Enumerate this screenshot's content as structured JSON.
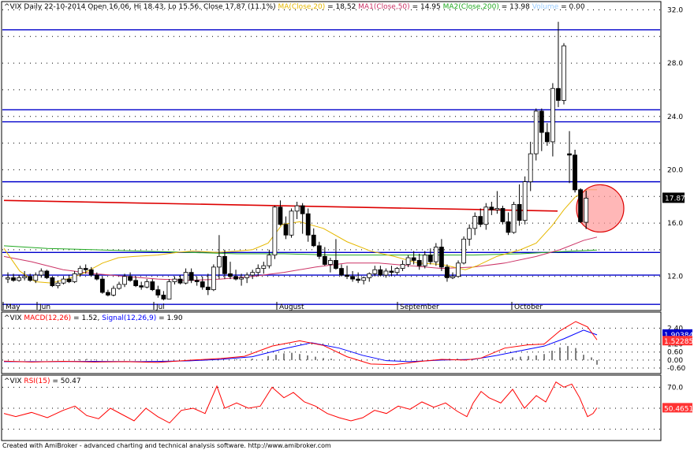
{
  "chart_data": {
    "type": "candlestick",
    "symbol": "^VIX",
    "header": {
      "symbol": "^VIX",
      "interval": "Daily",
      "date": "22-10-2014",
      "ohlc_text": "Open 16.06, Hi 18.43, Lo 15.56, Close 17.87 (11.1%)",
      "ma20_label": "MA(Close,20)",
      "ma20_value": "= 18.52",
      "ma50_label": "MA1(Close,50)",
      "ma50_value": "= 14.95",
      "ma200_label": "MA2(Close,200)",
      "ma200_value": "= 13.98",
      "volume_label": "Volume",
      "volume_value": "= 0.00"
    },
    "y_axis_ticks": [
      "32.0",
      "28.0",
      "24.0",
      "20.0",
      "16.0",
      "12.0"
    ],
    "last_price_label": "17.87",
    "x_axis_labels": [
      "May",
      "Jun",
      "Jul",
      "August",
      "September",
      "October"
    ],
    "ylim": [
      9.5,
      32.5
    ],
    "candles": [
      [
        11.8,
        12.3,
        11.5,
        11.9
      ],
      [
        11.9,
        12.2,
        11.6,
        11.7
      ],
      [
        11.7,
        12.1,
        11.6,
        11.9
      ],
      [
        11.9,
        12.4,
        11.7,
        12.0
      ],
      [
        12.0,
        12.2,
        11.6,
        11.7
      ],
      [
        11.7,
        12.3,
        11.5,
        12.1
      ],
      [
        12.1,
        12.6,
        11.9,
        12.4
      ],
      [
        12.4,
        12.5,
        11.8,
        11.9
      ],
      [
        11.9,
        12.0,
        11.2,
        11.3
      ],
      [
        11.3,
        11.7,
        11.1,
        11.5
      ],
      [
        11.5,
        12.0,
        11.4,
        11.8
      ],
      [
        11.8,
        12.1,
        11.5,
        11.6
      ],
      [
        11.6,
        12.4,
        11.5,
        12.2
      ],
      [
        12.2,
        12.8,
        12.0,
        12.6
      ],
      [
        12.6,
        12.9,
        12.2,
        12.5
      ],
      [
        12.5,
        12.7,
        12.0,
        12.1
      ],
      [
        12.1,
        12.3,
        11.7,
        11.8
      ],
      [
        11.8,
        12.0,
        10.7,
        10.8
      ],
      [
        10.8,
        11.0,
        10.5,
        10.6
      ],
      [
        10.6,
        11.3,
        10.5,
        11.1
      ],
      [
        11.1,
        11.6,
        11.0,
        11.4
      ],
      [
        11.4,
        12.2,
        11.2,
        12.0
      ],
      [
        12.0,
        12.3,
        11.6,
        11.7
      ],
      [
        11.7,
        12.0,
        11.2,
        11.3
      ],
      [
        11.3,
        11.6,
        11.0,
        11.2
      ],
      [
        11.2,
        11.8,
        11.1,
        11.6
      ],
      [
        11.6,
        11.8,
        10.9,
        11.0
      ],
      [
        11.0,
        11.3,
        10.4,
        10.6
      ],
      [
        10.6,
        10.9,
        10.2,
        10.3
      ],
      [
        10.3,
        11.8,
        10.3,
        11.6
      ],
      [
        11.6,
        12.0,
        11.4,
        11.8
      ],
      [
        11.8,
        12.1,
        11.4,
        11.5
      ],
      [
        11.5,
        12.6,
        11.4,
        12.3
      ],
      [
        12.3,
        12.6,
        11.5,
        11.7
      ],
      [
        11.7,
        12.0,
        11.3,
        11.6
      ],
      [
        11.6,
        12.0,
        11.0,
        11.2
      ],
      [
        11.2,
        12.2,
        10.6,
        11.0
      ],
      [
        11.0,
        12.9,
        10.9,
        12.7
      ],
      [
        12.7,
        15.1,
        11.8,
        13.5
      ],
      [
        13.5,
        14.0,
        11.8,
        12.2
      ],
      [
        12.2,
        13.1,
        11.8,
        12.0
      ],
      [
        12.0,
        12.5,
        11.7,
        11.8
      ],
      [
        11.8,
        12.2,
        11.3,
        11.9
      ],
      [
        11.9,
        12.3,
        11.5,
        12.1
      ],
      [
        12.1,
        12.5,
        11.8,
        12.3
      ],
      [
        12.3,
        12.9,
        12.0,
        12.6
      ],
      [
        12.6,
        13.1,
        12.2,
        12.8
      ],
      [
        12.8,
        14.0,
        12.6,
        13.6
      ],
      [
        13.6,
        17.3,
        13.3,
        17.2
      ],
      [
        17.2,
        17.7,
        15.8,
        15.9
      ],
      [
        15.9,
        16.5,
        14.8,
        15.1
      ],
      [
        15.1,
        17.1,
        14.9,
        16.9
      ],
      [
        16.9,
        17.6,
        16.3,
        17.3
      ],
      [
        17.3,
        17.5,
        15.2,
        16.7
      ],
      [
        16.7,
        17.1,
        14.6,
        15.1
      ],
      [
        15.1,
        15.6,
        14.2,
        14.3
      ],
      [
        14.3,
        14.6,
        13.3,
        13.5
      ],
      [
        13.5,
        14.2,
        12.8,
        12.9
      ],
      [
        12.9,
        13.4,
        12.3,
        13.2
      ],
      [
        13.2,
        14.8,
        12.5,
        12.6
      ],
      [
        12.6,
        12.9,
        12.0,
        12.1
      ],
      [
        12.1,
        12.8,
        11.8,
        12.0
      ],
      [
        12.0,
        12.4,
        11.6,
        11.8
      ],
      [
        11.8,
        12.3,
        11.5,
        11.7
      ],
      [
        11.7,
        12.0,
        11.4,
        11.9
      ],
      [
        11.9,
        12.3,
        11.6,
        12.2
      ],
      [
        12.2,
        12.8,
        12.0,
        12.5
      ],
      [
        12.5,
        12.8,
        12.0,
        12.1
      ],
      [
        12.1,
        12.6,
        11.9,
        12.4
      ],
      [
        12.4,
        12.8,
        12.0,
        12.3
      ],
      [
        12.3,
        12.7,
        12.1,
        12.6
      ],
      [
        12.6,
        13.2,
        12.4,
        12.9
      ],
      [
        12.9,
        13.6,
        12.7,
        13.4
      ],
      [
        13.4,
        13.9,
        12.9,
        13.2
      ],
      [
        13.2,
        13.7,
        12.5,
        12.8
      ],
      [
        12.8,
        13.9,
        12.6,
        13.6
      ],
      [
        13.6,
        14.1,
        12.9,
        13.1
      ],
      [
        13.1,
        14.5,
        12.8,
        14.2
      ],
      [
        14.2,
        14.8,
        12.4,
        12.7
      ],
      [
        12.7,
        12.9,
        11.6,
        11.9
      ],
      [
        11.9,
        12.3,
        11.8,
        12.0
      ],
      [
        12.0,
        13.2,
        11.9,
        13.0
      ],
      [
        13.0,
        15.0,
        12.9,
        14.8
      ],
      [
        14.8,
        15.9,
        14.3,
        15.6
      ],
      [
        15.6,
        16.8,
        15.1,
        16.5
      ],
      [
        16.5,
        17.1,
        15.7,
        15.9
      ],
      [
        15.9,
        17.5,
        15.5,
        17.2
      ],
      [
        17.2,
        17.6,
        16.6,
        17.0
      ],
      [
        17.0,
        18.4,
        16.7,
        17.1
      ],
      [
        17.1,
        17.3,
        15.9,
        16.1
      ],
      [
        16.1,
        16.8,
        15.1,
        15.3
      ],
      [
        15.3,
        17.6,
        15.2,
        17.4
      ],
      [
        17.4,
        18.9,
        15.8,
        16.2
      ],
      [
        16.2,
        19.5,
        15.9,
        19.1
      ],
      [
        19.1,
        22.1,
        18.4,
        21.2
      ],
      [
        21.2,
        24.6,
        20.7,
        24.4
      ],
      [
        24.4,
        24.6,
        21.4,
        22.8
      ],
      [
        22.8,
        23.5,
        21.8,
        22.1
      ],
      [
        22.1,
        26.5,
        21.0,
        26.1
      ],
      [
        26.1,
        31.1,
        24.7,
        25.2
      ],
      [
        25.2,
        29.5,
        24.9,
        29.3
      ],
      [
        21.2,
        22.9,
        19.0,
        21.1
      ],
      [
        21.1,
        21.5,
        18.3,
        18.5
      ],
      [
        18.5,
        18.6,
        16.0,
        16.1
      ],
      [
        16.06,
        18.43,
        15.56,
        17.87
      ]
    ],
    "ma20_line": [
      [
        5,
        14.1
      ],
      [
        25,
        12.4
      ],
      [
        45,
        11.6
      ],
      [
        65,
        11.5
      ],
      [
        85,
        11.8
      ],
      [
        105,
        12.2
      ],
      [
        130,
        13.0
      ],
      [
        150,
        13.4
      ],
      [
        170,
        13.5
      ],
      [
        200,
        13.6
      ],
      [
        225,
        13.8
      ],
      [
        244,
        13.9
      ],
      [
        275,
        13.8
      ],
      [
        300,
        13.9
      ],
      [
        320,
        14.0
      ],
      [
        340,
        14.5
      ],
      [
        358,
        15.9
      ],
      [
        380,
        16.1
      ],
      [
        410,
        15.6
      ],
      [
        440,
        14.6
      ],
      [
        470,
        13.9
      ],
      [
        500,
        13.5
      ],
      [
        530,
        13.0
      ],
      [
        560,
        12.9
      ],
      [
        590,
        12.5
      ],
      [
        605,
        12.8
      ],
      [
        630,
        13.5
      ],
      [
        660,
        14.0
      ],
      [
        680,
        14.5
      ],
      [
        700,
        15.8
      ],
      [
        715,
        17.0
      ],
      [
        730,
        18.0
      ],
      [
        745,
        18.5
      ],
      [
        757,
        18.5
      ]
    ],
    "ma50_line": [
      [
        5,
        13.5
      ],
      [
        40,
        13.1
      ],
      [
        80,
        12.5
      ],
      [
        120,
        12.2
      ],
      [
        160,
        12.0
      ],
      [
        200,
        11.8
      ],
      [
        240,
        11.7
      ],
      [
        280,
        11.8
      ],
      [
        320,
        12.0
      ],
      [
        360,
        12.3
      ],
      [
        400,
        12.7
      ],
      [
        440,
        13.0
      ],
      [
        480,
        13.0
      ],
      [
        520,
        12.8
      ],
      [
        560,
        12.6
      ],
      [
        600,
        12.7
      ],
      [
        640,
        13.0
      ],
      [
        680,
        13.5
      ],
      [
        710,
        14.0
      ],
      [
        740,
        14.7
      ],
      [
        757,
        14.95
      ]
    ],
    "ma200_line": [
      [
        5,
        14.3
      ],
      [
        60,
        14.1
      ],
      [
        120,
        14.0
      ],
      [
        180,
        13.9
      ],
      [
        240,
        13.8
      ],
      [
        300,
        13.7
      ],
      [
        360,
        13.7
      ],
      [
        420,
        13.6
      ],
      [
        480,
        13.6
      ],
      [
        540,
        13.6
      ],
      [
        600,
        13.6
      ],
      [
        660,
        13.7
      ],
      [
        710,
        13.85
      ],
      [
        757,
        13.98
      ]
    ],
    "red_trend_line": [
      [
        5,
        17.7
      ],
      [
        707,
        16.9
      ]
    ],
    "horizontal_levels": [
      30.5,
      24.5,
      23.6,
      19.1,
      13.8,
      12.1,
      9.9
    ],
    "highlight_circle": {
      "x": 761,
      "value": 17.1
    },
    "macd_panel": {
      "label_symbol": "^VIX",
      "macd_label": "MACD(12,26)",
      "macd_value": "= 1.52,",
      "signal_label": "Signal(12,26,9)",
      "signal_value": "= 1.90",
      "ticks": [
        "2.40",
        "1.20",
        "0.60",
        "0.00",
        "-0.60"
      ],
      "signal_box": "1.90384",
      "macd_box": "1.52285",
      "ylim": [
        -0.9,
        2.9
      ],
      "macd_line": [
        [
          5,
          -0.08
        ],
        [
          40,
          -0.15
        ],
        [
          80,
          -0.1
        ],
        [
          120,
          -0.15
        ],
        [
          160,
          -0.12
        ],
        [
          200,
          -0.18
        ],
        [
          240,
          -0.02
        ],
        [
          280,
          0.12
        ],
        [
          310,
          0.28
        ],
        [
          345,
          1.05
        ],
        [
          380,
          1.45
        ],
        [
          410,
          1.1
        ],
        [
          440,
          0.25
        ],
        [
          470,
          -0.3
        ],
        [
          500,
          -0.35
        ],
        [
          530,
          -0.12
        ],
        [
          560,
          0.05
        ],
        [
          590,
          0.0
        ],
        [
          610,
          0.15
        ],
        [
          640,
          0.9
        ],
        [
          670,
          1.15
        ],
        [
          690,
          1.2
        ],
        [
          710,
          2.2
        ],
        [
          730,
          2.9
        ],
        [
          745,
          2.5
        ],
        [
          757,
          1.52
        ]
      ],
      "signal_line": [
        [
          5,
          -0.12
        ],
        [
          60,
          -0.12
        ],
        [
          120,
          -0.1
        ],
        [
          180,
          -0.12
        ],
        [
          240,
          -0.06
        ],
        [
          280,
          0.05
        ],
        [
          320,
          0.25
        ],
        [
          360,
          0.85
        ],
        [
          395,
          1.3
        ],
        [
          430,
          0.9
        ],
        [
          460,
          0.35
        ],
        [
          490,
          -0.05
        ],
        [
          520,
          -0.12
        ],
        [
          560,
          0.0
        ],
        [
          600,
          0.05
        ],
        [
          630,
          0.35
        ],
        [
          660,
          0.7
        ],
        [
          690,
          1.05
        ],
        [
          715,
          1.6
        ],
        [
          740,
          2.25
        ],
        [
          757,
          1.9
        ]
      ],
      "histogram": [
        [
          100,
          0.05
        ],
        [
          110,
          0.08
        ],
        [
          120,
          0.05
        ],
        [
          300,
          0.05
        ],
        [
          320,
          0.1
        ],
        [
          340,
          0.3
        ],
        [
          350,
          0.4
        ],
        [
          360,
          0.5
        ],
        [
          370,
          0.55
        ],
        [
          380,
          0.45
        ],
        [
          390,
          0.35
        ],
        [
          400,
          0.25
        ],
        [
          410,
          0.15
        ],
        [
          420,
          0.1
        ],
        [
          560,
          0.05
        ],
        [
          570,
          0.1
        ],
        [
          580,
          0.1
        ],
        [
          650,
          0.2
        ],
        [
          660,
          0.25
        ],
        [
          670,
          0.3
        ],
        [
          680,
          0.35
        ],
        [
          690,
          0.45
        ],
        [
          700,
          0.7
        ],
        [
          710,
          0.95
        ],
        [
          720,
          1.05
        ],
        [
          730,
          0.9
        ],
        [
          740,
          0.4
        ],
        [
          750,
          0.2
        ],
        [
          757,
          -0.35
        ]
      ]
    },
    "rsi_panel": {
      "label_symbol": "^VIX",
      "rsi_label": "RSI(15)",
      "rsi_value": "= 50.47",
      "ticks": [
        "70.0"
      ],
      "rsi_box": "50.4651",
      "ylim": [
        20,
        80
      ],
      "rsi_line": [
        [
          5,
          45
        ],
        [
          20,
          42
        ],
        [
          40,
          46
        ],
        [
          60,
          41
        ],
        [
          80,
          48
        ],
        [
          95,
          52
        ],
        [
          110,
          43
        ],
        [
          125,
          40
        ],
        [
          140,
          50
        ],
        [
          155,
          44
        ],
        [
          170,
          38
        ],
        [
          185,
          50
        ],
        [
          200,
          42
        ],
        [
          215,
          36
        ],
        [
          230,
          48
        ],
        [
          245,
          50
        ],
        [
          260,
          45
        ],
        [
          275,
          71
        ],
        [
          285,
          50
        ],
        [
          300,
          55
        ],
        [
          315,
          50
        ],
        [
          330,
          52
        ],
        [
          345,
          70
        ],
        [
          360,
          60
        ],
        [
          372,
          65
        ],
        [
          386,
          56
        ],
        [
          400,
          52
        ],
        [
          415,
          45
        ],
        [
          430,
          41
        ],
        [
          445,
          38
        ],
        [
          460,
          41
        ],
        [
          475,
          48
        ],
        [
          490,
          45
        ],
        [
          505,
          52
        ],
        [
          520,
          49
        ],
        [
          535,
          56
        ],
        [
          550,
          51
        ],
        [
          565,
          55
        ],
        [
          580,
          47
        ],
        [
          592,
          42
        ],
        [
          600,
          55
        ],
        [
          610,
          66
        ],
        [
          620,
          60
        ],
        [
          635,
          55
        ],
        [
          650,
          68
        ],
        [
          665,
          50
        ],
        [
          680,
          62
        ],
        [
          692,
          56
        ],
        [
          705,
          75
        ],
        [
          715,
          70
        ],
        [
          725,
          73
        ],
        [
          735,
          60
        ],
        [
          745,
          42
        ],
        [
          752,
          45
        ],
        [
          757,
          50.47
        ]
      ]
    },
    "footer": "Created with AmiBroker - advanced charting and technical analysis software. http://www.amibroker.com"
  }
}
